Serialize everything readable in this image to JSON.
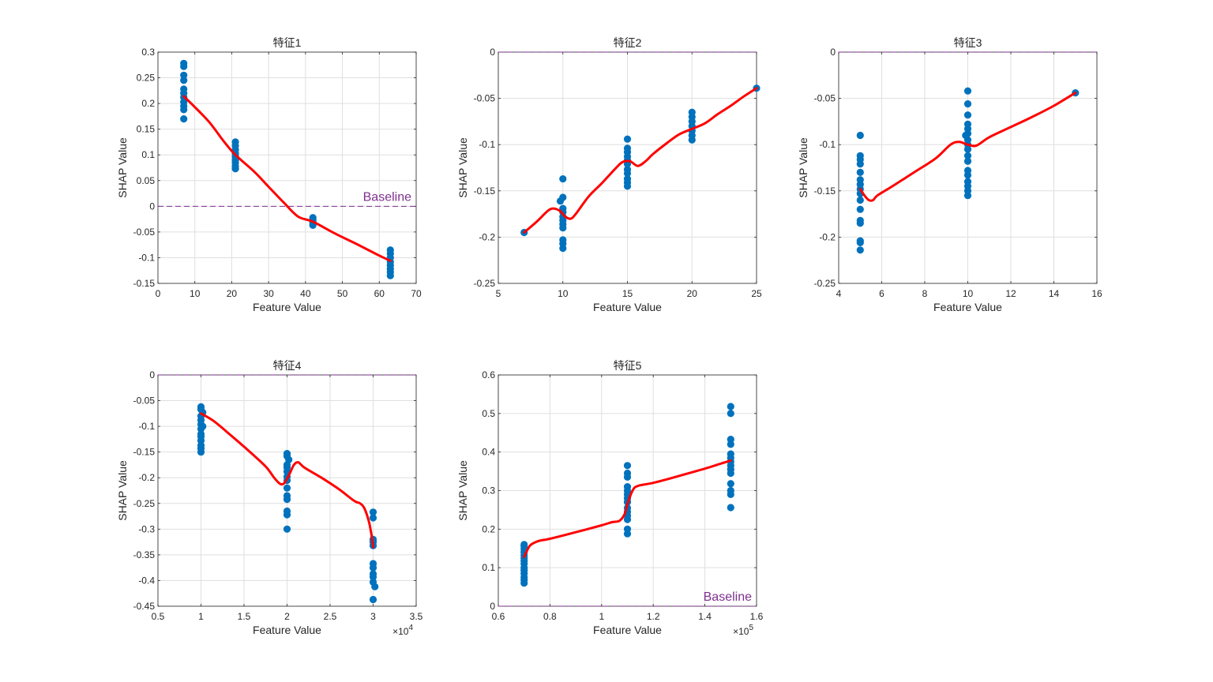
{
  "figure": {
    "background": "#ffffff"
  },
  "style": {
    "dot_color": "#0072BD",
    "curve_color": "#FF0000",
    "baseline_color": "#7E2F8E",
    "grid_color": "#DFDFDF",
    "axis_color": "#262626"
  },
  "chart_data": [
    {
      "type": "scatter",
      "title": "特征1",
      "xlabel": "Feature Value",
      "ylabel": "SHAP Value",
      "xlim": [
        0,
        70
      ],
      "ylim": [
        -0.15,
        0.3
      ],
      "xticks": [
        0,
        10,
        20,
        30,
        40,
        50,
        60,
        70
      ],
      "xtick_labels": [
        "0",
        "10",
        "20",
        "30",
        "40",
        "50",
        "60",
        "70"
      ],
      "yticks": [
        -0.15,
        -0.1,
        -0.05,
        0,
        0.05,
        0.1,
        0.15,
        0.2,
        0.25,
        0.3
      ],
      "ytick_labels": [
        "-0.15",
        "-0.1",
        "-0.05",
        "0",
        "0.05",
        "0.1",
        "0.15",
        "0.2",
        "0.25",
        "0.3"
      ],
      "x_exponent": "",
      "grid": true,
      "baseline": 0,
      "baseline_label": "Baseline",
      "baseline_label_position": "right-above-line",
      "points": [
        [
          7,
          0.278
        ],
        [
          7,
          0.272
        ],
        [
          7,
          0.255
        ],
        [
          7,
          0.245
        ],
        [
          7,
          0.228
        ],
        [
          7,
          0.22
        ],
        [
          7,
          0.212
        ],
        [
          7,
          0.203
        ],
        [
          7,
          0.195
        ],
        [
          7,
          0.188
        ],
        [
          7,
          0.17
        ],
        [
          21,
          0.125
        ],
        [
          21,
          0.118
        ],
        [
          21,
          0.11
        ],
        [
          21,
          0.103
        ],
        [
          21,
          0.097
        ],
        [
          21,
          0.09
        ],
        [
          21,
          0.085
        ],
        [
          21,
          0.078
        ],
        [
          21,
          0.073
        ],
        [
          42,
          -0.022
        ],
        [
          42,
          -0.026
        ],
        [
          42,
          -0.03
        ],
        [
          42,
          -0.034
        ],
        [
          42,
          -0.037
        ],
        [
          63,
          -0.085
        ],
        [
          63,
          -0.092
        ],
        [
          63,
          -0.1
        ],
        [
          63,
          -0.108
        ],
        [
          63,
          -0.115
        ],
        [
          63,
          -0.122
        ],
        [
          63,
          -0.128
        ],
        [
          63,
          -0.135
        ]
      ],
      "curve": [
        [
          7,
          0.214
        ],
        [
          10,
          0.193
        ],
        [
          14,
          0.163
        ],
        [
          18,
          0.125
        ],
        [
          21,
          0.1
        ],
        [
          26,
          0.068
        ],
        [
          30,
          0.038
        ],
        [
          34,
          0.008
        ],
        [
          38,
          -0.02
        ],
        [
          42,
          -0.03
        ],
        [
          48,
          -0.053
        ],
        [
          54,
          -0.074
        ],
        [
          60,
          -0.096
        ],
        [
          63,
          -0.106
        ]
      ]
    },
    {
      "type": "scatter",
      "title": "特征2",
      "xlabel": "Feature Value",
      "ylabel": "SHAP Value",
      "xlim": [
        5,
        25
      ],
      "ylim": [
        -0.25,
        0
      ],
      "xticks": [
        5,
        10,
        15,
        20,
        25
      ],
      "xtick_labels": [
        "5",
        "10",
        "15",
        "20",
        "25"
      ],
      "yticks": [
        -0.25,
        -0.2,
        -0.15,
        -0.1,
        -0.05,
        0
      ],
      "ytick_labels": [
        "-0.25",
        "-0.2",
        "-0.15",
        "-0.1",
        "-0.05",
        "0"
      ],
      "x_exponent": "",
      "grid": true,
      "baseline": 0,
      "baseline_label": "",
      "points": [
        [
          7,
          -0.195
        ],
        [
          10,
          -0.137
        ],
        [
          10,
          -0.157
        ],
        [
          9.8,
          -0.161
        ],
        [
          10,
          -0.169
        ],
        [
          10,
          -0.173
        ],
        [
          10,
          -0.178
        ],
        [
          10,
          -0.182
        ],
        [
          10,
          -0.186
        ],
        [
          10,
          -0.19
        ],
        [
          10,
          -0.203
        ],
        [
          10,
          -0.207
        ],
        [
          10,
          -0.212
        ],
        [
          15,
          -0.094
        ],
        [
          15,
          -0.104
        ],
        [
          15,
          -0.108
        ],
        [
          15,
          -0.113
        ],
        [
          15,
          -0.117
        ],
        [
          15,
          -0.121
        ],
        [
          15,
          -0.127
        ],
        [
          15,
          -0.131
        ],
        [
          15,
          -0.137
        ],
        [
          15,
          -0.141
        ],
        [
          15,
          -0.145
        ],
        [
          20,
          -0.065
        ],
        [
          20,
          -0.07
        ],
        [
          20,
          -0.075
        ],
        [
          20,
          -0.08
        ],
        [
          20,
          -0.085
        ],
        [
          20,
          -0.09
        ],
        [
          20,
          -0.095
        ],
        [
          25,
          -0.039
        ]
      ],
      "curve": [
        [
          7,
          -0.195
        ],
        [
          8,
          -0.183
        ],
        [
          9,
          -0.17
        ],
        [
          9.7,
          -0.171
        ],
        [
          10.2,
          -0.178
        ],
        [
          10.6,
          -0.18
        ],
        [
          11,
          -0.175
        ],
        [
          12,
          -0.156
        ],
        [
          13,
          -0.142
        ],
        [
          14,
          -0.127
        ],
        [
          14.6,
          -0.119
        ],
        [
          15.2,
          -0.118
        ],
        [
          15.8,
          -0.123
        ],
        [
          16.4,
          -0.118
        ],
        [
          17,
          -0.11
        ],
        [
          18,
          -0.099
        ],
        [
          19,
          -0.089
        ],
        [
          20,
          -0.083
        ],
        [
          21,
          -0.077
        ],
        [
          22,
          -0.067
        ],
        [
          23,
          -0.058
        ],
        [
          24,
          -0.048
        ],
        [
          25,
          -0.039
        ]
      ]
    },
    {
      "type": "scatter",
      "title": "特征3",
      "xlabel": "Feature Value",
      "ylabel": "SHAP Value",
      "xlim": [
        4,
        16
      ],
      "ylim": [
        -0.25,
        0
      ],
      "xticks": [
        4,
        6,
        8,
        10,
        12,
        14,
        16
      ],
      "xtick_labels": [
        "4",
        "6",
        "8",
        "10",
        "12",
        "14",
        "16"
      ],
      "yticks": [
        -0.25,
        -0.2,
        -0.15,
        -0.1,
        -0.05,
        0
      ],
      "ytick_labels": [
        "-0.25",
        "-0.2",
        "-0.15",
        "-0.1",
        "-0.05",
        "0"
      ],
      "x_exponent": "",
      "grid": true,
      "baseline": 0,
      "baseline_label": "",
      "points": [
        [
          5,
          -0.09
        ],
        [
          5,
          -0.112
        ],
        [
          5,
          -0.116
        ],
        [
          5,
          -0.121
        ],
        [
          5,
          -0.13
        ],
        [
          5,
          -0.138
        ],
        [
          5,
          -0.143
        ],
        [
          5,
          -0.148
        ],
        [
          5,
          -0.153
        ],
        [
          5,
          -0.16
        ],
        [
          5,
          -0.17
        ],
        [
          5,
          -0.182
        ],
        [
          5,
          -0.185
        ],
        [
          5,
          -0.204
        ],
        [
          5,
          -0.206
        ],
        [
          5,
          -0.214
        ],
        [
          10,
          -0.042
        ],
        [
          10,
          -0.056
        ],
        [
          10,
          -0.068
        ],
        [
          10,
          -0.078
        ],
        [
          10,
          -0.083
        ],
        [
          10,
          -0.088
        ],
        [
          9.9,
          -0.09
        ],
        [
          10,
          -0.095
        ],
        [
          10,
          -0.1
        ],
        [
          10,
          -0.105
        ],
        [
          10,
          -0.112
        ],
        [
          10,
          -0.118
        ],
        [
          10,
          -0.128
        ],
        [
          10,
          -0.133
        ],
        [
          10,
          -0.14
        ],
        [
          10,
          -0.145
        ],
        [
          10,
          -0.15
        ],
        [
          10,
          -0.155
        ],
        [
          15,
          -0.044
        ]
      ],
      "curve": [
        [
          5,
          -0.148
        ],
        [
          5.2,
          -0.155
        ],
        [
          5.4,
          -0.16
        ],
        [
          5.6,
          -0.16
        ],
        [
          5.8,
          -0.155
        ],
        [
          6.5,
          -0.145
        ],
        [
          7.5,
          -0.13
        ],
        [
          8.5,
          -0.115
        ],
        [
          9.2,
          -0.1
        ],
        [
          9.6,
          -0.097
        ],
        [
          10,
          -0.1
        ],
        [
          10.4,
          -0.101
        ],
        [
          11,
          -0.092
        ],
        [
          12,
          -0.081
        ],
        [
          13,
          -0.07
        ],
        [
          14,
          -0.058
        ],
        [
          15,
          -0.044
        ]
      ]
    },
    {
      "type": "scatter",
      "title": "特征4",
      "xlabel": "Feature Value",
      "ylabel": "SHAP Value",
      "xlim": [
        0.5,
        3.5
      ],
      "ylim": [
        -0.45,
        0
      ],
      "xticks": [
        0.5,
        1,
        1.5,
        2,
        2.5,
        3,
        3.5
      ],
      "xtick_labels": [
        "0.5",
        "1",
        "1.5",
        "2",
        "2.5",
        "3",
        "3.5"
      ],
      "yticks": [
        -0.45,
        -0.4,
        -0.35,
        -0.3,
        -0.25,
        -0.2,
        -0.15,
        -0.1,
        -0.05,
        0
      ],
      "ytick_labels": [
        "-0.45",
        "-0.4",
        "-0.35",
        "-0.3",
        "-0.25",
        "-0.2",
        "-0.15",
        "-0.1",
        "-0.05",
        "0"
      ],
      "x_exponent": "×10",
      "x_exponent_power": "4",
      "grid": true,
      "baseline": 0,
      "baseline_label": "",
      "points": [
        [
          1,
          -0.062
        ],
        [
          1,
          -0.067
        ],
        [
          1.02,
          -0.073
        ],
        [
          1,
          -0.08
        ],
        [
          1,
          -0.088
        ],
        [
          1,
          -0.096
        ],
        [
          1.02,
          -0.1
        ],
        [
          1,
          -0.105
        ],
        [
          1,
          -0.115
        ],
        [
          1,
          -0.12
        ],
        [
          1,
          -0.128
        ],
        [
          1,
          -0.137
        ],
        [
          1,
          -0.143
        ],
        [
          1,
          -0.15
        ],
        [
          2,
          -0.153
        ],
        [
          2,
          -0.158
        ],
        [
          2.02,
          -0.165
        ],
        [
          2,
          -0.175
        ],
        [
          2,
          -0.18
        ],
        [
          2,
          -0.188
        ],
        [
          2,
          -0.198
        ],
        [
          2,
          -0.205
        ],
        [
          2,
          -0.22
        ],
        [
          2,
          -0.235
        ],
        [
          2,
          -0.242
        ],
        [
          2,
          -0.265
        ],
        [
          2,
          -0.272
        ],
        [
          2,
          -0.3
        ],
        [
          3,
          -0.267
        ],
        [
          3,
          -0.278
        ],
        [
          3,
          -0.32
        ],
        [
          3,
          -0.325
        ],
        [
          3,
          -0.332
        ],
        [
          3,
          -0.367
        ],
        [
          3,
          -0.375
        ],
        [
          3,
          -0.387
        ],
        [
          3,
          -0.393
        ],
        [
          3,
          -0.403
        ],
        [
          3.02,
          -0.412
        ],
        [
          3,
          -0.437
        ]
      ],
      "curve": [
        [
          1,
          -0.075
        ],
        [
          1.15,
          -0.09
        ],
        [
          1.35,
          -0.118
        ],
        [
          1.55,
          -0.147
        ],
        [
          1.75,
          -0.178
        ],
        [
          1.85,
          -0.2
        ],
        [
          1.92,
          -0.212
        ],
        [
          1.97,
          -0.21
        ],
        [
          2.03,
          -0.192
        ],
        [
          2.08,
          -0.175
        ],
        [
          2.13,
          -0.17
        ],
        [
          2.2,
          -0.18
        ],
        [
          2.4,
          -0.2
        ],
        [
          2.6,
          -0.222
        ],
        [
          2.78,
          -0.245
        ],
        [
          2.85,
          -0.25
        ],
        [
          2.9,
          -0.26
        ],
        [
          2.95,
          -0.285
        ],
        [
          2.98,
          -0.31
        ],
        [
          3,
          -0.335
        ]
      ]
    },
    {
      "type": "scatter",
      "title": "特征5",
      "xlabel": "Feature Value",
      "ylabel": "SHAP Value",
      "xlim": [
        0.6,
        1.6
      ],
      "ylim": [
        0,
        0.6
      ],
      "xticks": [
        0.6,
        0.8,
        1,
        1.2,
        1.4,
        1.6
      ],
      "xtick_labels": [
        "0.6",
        "0.8",
        "1",
        "1.2",
        "1.4",
        "1.6"
      ],
      "yticks": [
        0,
        0.1,
        0.2,
        0.3,
        0.4,
        0.5,
        0.6
      ],
      "ytick_labels": [
        "0",
        "0.1",
        "0.2",
        "0.3",
        "0.4",
        "0.5",
        "0.6"
      ],
      "x_exponent": "×10",
      "x_exponent_power": "5",
      "grid": true,
      "baseline": 0,
      "baseline_label": "Baseline",
      "baseline_label_position": "right-above-line",
      "points": [
        [
          0.7,
          0.16
        ],
        [
          0.7,
          0.155
        ],
        [
          0.7,
          0.148
        ],
        [
          0.7,
          0.14
        ],
        [
          0.7,
          0.132
        ],
        [
          0.7,
          0.125
        ],
        [
          0.7,
          0.118
        ],
        [
          0.7,
          0.11
        ],
        [
          0.7,
          0.1
        ],
        [
          0.7,
          0.093
        ],
        [
          0.7,
          0.085
        ],
        [
          0.7,
          0.075
        ],
        [
          0.7,
          0.068
        ],
        [
          0.7,
          0.06
        ],
        [
          1.1,
          0.365
        ],
        [
          1.1,
          0.345
        ],
        [
          1.1,
          0.335
        ],
        [
          1.1,
          0.31
        ],
        [
          1.1,
          0.3
        ],
        [
          1.1,
          0.29
        ],
        [
          1.1,
          0.28
        ],
        [
          1.1,
          0.27
        ],
        [
          1.1,
          0.255
        ],
        [
          1.1,
          0.245
        ],
        [
          1.1,
          0.235
        ],
        [
          1.1,
          0.225
        ],
        [
          1.1,
          0.2
        ],
        [
          1.1,
          0.188
        ],
        [
          1.5,
          0.518
        ],
        [
          1.5,
          0.5
        ],
        [
          1.5,
          0.433
        ],
        [
          1.5,
          0.42
        ],
        [
          1.5,
          0.395
        ],
        [
          1.5,
          0.385
        ],
        [
          1.5,
          0.375
        ],
        [
          1.5,
          0.365
        ],
        [
          1.5,
          0.355
        ],
        [
          1.5,
          0.345
        ],
        [
          1.5,
          0.318
        ],
        [
          1.5,
          0.3
        ],
        [
          1.5,
          0.29
        ],
        [
          1.5,
          0.256
        ]
      ],
      "curve": [
        [
          0.7,
          0.128
        ],
        [
          0.72,
          0.155
        ],
        [
          0.74,
          0.165
        ],
        [
          0.76,
          0.17
        ],
        [
          0.8,
          0.175
        ],
        [
          0.9,
          0.192
        ],
        [
          1,
          0.21
        ],
        [
          1.04,
          0.218
        ],
        [
          1.07,
          0.222
        ],
        [
          1.09,
          0.24
        ],
        [
          1.1,
          0.265
        ],
        [
          1.12,
          0.3
        ],
        [
          1.14,
          0.312
        ],
        [
          1.2,
          0.32
        ],
        [
          1.3,
          0.338
        ],
        [
          1.4,
          0.357
        ],
        [
          1.5,
          0.378
        ]
      ]
    }
  ]
}
